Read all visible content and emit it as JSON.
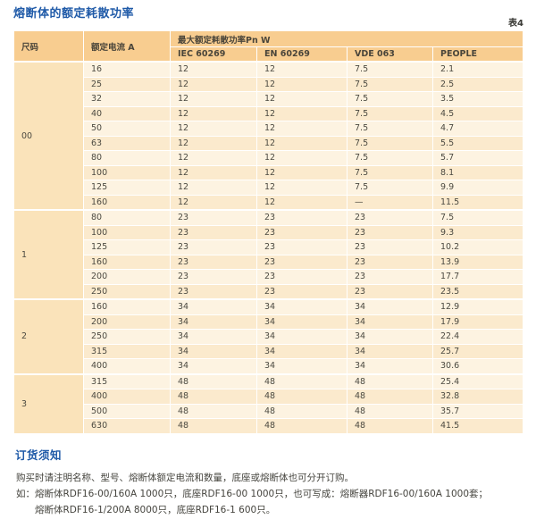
{
  "page": {
    "title": "熔断体的额定耗散功率",
    "table_tag": "表4"
  },
  "colors": {
    "heading_blue": "#1f5aa8",
    "table_header_bg": "#f8cd90",
    "size_col_bg": "#fae3ba",
    "row_light_bg": "#fdf3e1",
    "row_dark_bg": "#fbeacd",
    "text": "#4c4a41"
  },
  "table": {
    "headers": {
      "size": "尺码",
      "current": "额定电流  A",
      "power_span": "最大额定耗散功率Pn W",
      "standards": [
        "IEC 60269",
        "EN 60269",
        "VDE 063",
        "PEOPLE"
      ]
    },
    "groups": [
      {
        "size": "00",
        "rows": [
          [
            "16",
            "12",
            "12",
            "7.5",
            "2.1"
          ],
          [
            "25",
            "12",
            "12",
            "7.5",
            "2.5"
          ],
          [
            "32",
            "12",
            "12",
            "7.5",
            "3.5"
          ],
          [
            "40",
            "12",
            "12",
            "7.5",
            "4.5"
          ],
          [
            "50",
            "12",
            "12",
            "7.5",
            "4.7"
          ],
          [
            "63",
            "12",
            "12",
            "7.5",
            "5.5"
          ],
          [
            "80",
            "12",
            "12",
            "7.5",
            "5.7"
          ],
          [
            "100",
            "12",
            "12",
            "7.5",
            "8.1"
          ],
          [
            "125",
            "12",
            "12",
            "7.5",
            "9.9"
          ],
          [
            "160",
            "12",
            "12",
            "—",
            "11.5"
          ]
        ]
      },
      {
        "size": "1",
        "rows": [
          [
            "80",
            "23",
            "23",
            "23",
            "7.5"
          ],
          [
            "100",
            "23",
            "23",
            "23",
            "9.3"
          ],
          [
            "125",
            "23",
            "23",
            "23",
            "10.2"
          ],
          [
            "160",
            "23",
            "23",
            "23",
            "13.9"
          ],
          [
            "200",
            "23",
            "23",
            "23",
            "17.7"
          ],
          [
            "250",
            "23",
            "23",
            "23",
            "23.5"
          ]
        ]
      },
      {
        "size": "2",
        "rows": [
          [
            "160",
            "34",
            "34",
            "34",
            "12.9"
          ],
          [
            "200",
            "34",
            "34",
            "34",
            "17.9"
          ],
          [
            "250",
            "34",
            "34",
            "34",
            "22.4"
          ],
          [
            "315",
            "34",
            "34",
            "34",
            "25.7"
          ],
          [
            "400",
            "34",
            "34",
            "34",
            "30.6"
          ]
        ]
      },
      {
        "size": "3",
        "rows": [
          [
            "315",
            "48",
            "48",
            "48",
            "25.4"
          ],
          [
            "400",
            "48",
            "48",
            "48",
            "32.8"
          ],
          [
            "500",
            "48",
            "48",
            "48",
            "35.7"
          ],
          [
            "630",
            "48",
            "48",
            "48",
            "41.5"
          ]
        ]
      }
    ]
  },
  "ordering": {
    "heading": "订货须知",
    "lines": [
      "购买时请注明名称、型号、熔断体额定电流和数量，底座或熔断体也可分开订购。",
      "如：熔断体RDF16-00/160A 1000只，底座RDF16-00 1000只，也可写成：熔断器RDF16-00/160A 1000套；",
      "熔断体RDF16-1/200A 8000只，底座RDF16-1 600只。"
    ]
  }
}
